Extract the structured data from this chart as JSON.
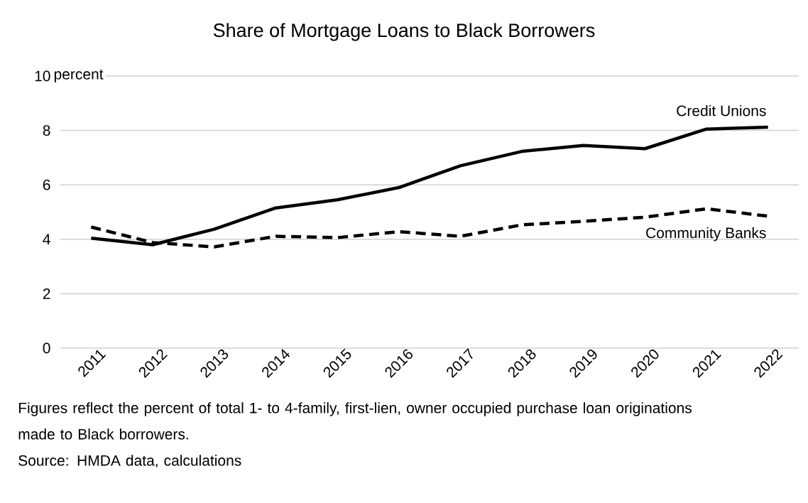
{
  "chart_data": {
    "type": "line",
    "title": "Share of Mortgage Loans to Black Borrowers",
    "ylabel": "percent",
    "categories": [
      "2011",
      "2012",
      "2013",
      "2014",
      "2015",
      "2016",
      "2017",
      "2018",
      "2019",
      "2020",
      "2021",
      "2022"
    ],
    "series": [
      {
        "name": "Credit Unions",
        "color": "#000000",
        "line_style": "solid",
        "values": [
          4.04,
          3.8,
          4.37,
          5.15,
          5.45,
          5.9,
          6.7,
          7.23,
          7.45,
          7.33,
          8.05,
          8.12
        ]
      },
      {
        "name": "Community Banks",
        "color": "#000000",
        "line_style": "dashed",
        "values": [
          4.45,
          3.88,
          3.72,
          4.11,
          4.06,
          4.28,
          4.11,
          4.53,
          4.66,
          4.81,
          5.12,
          4.85
        ]
      }
    ],
    "ylim": [
      0,
      10
    ],
    "yticks": [
      0,
      2,
      4,
      6,
      8,
      10
    ],
    "grid": "y",
    "marker": "none",
    "annotations": [
      "Figures reflect the percent of total 1- to 4-family, first-lien, owner occupied purchase loan originations made to Black borrowers.",
      "Source: HMDA data, calculations"
    ]
  }
}
